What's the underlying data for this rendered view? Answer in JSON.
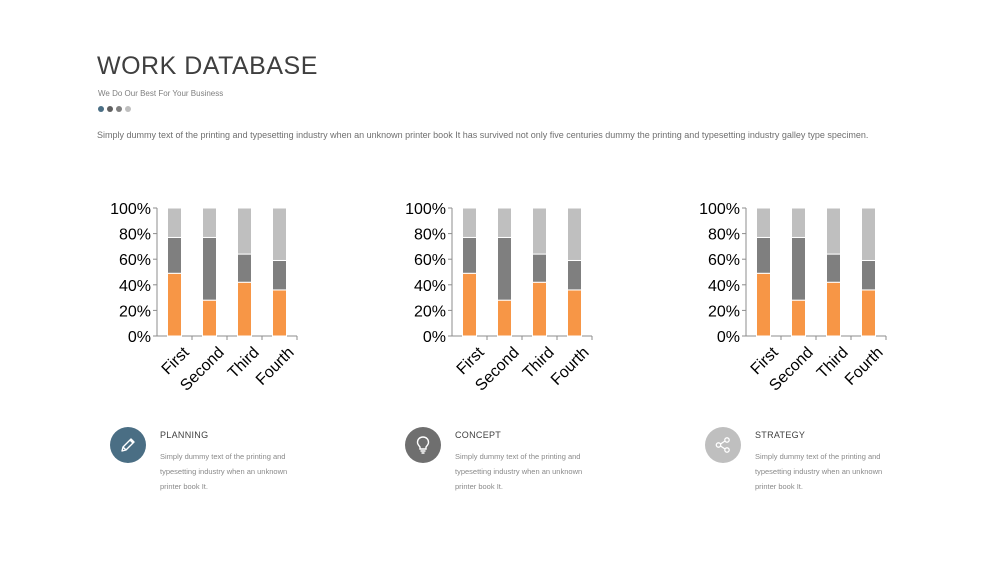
{
  "header": {
    "title": "WORK DATABASE",
    "subtitle": "We Do Our Best For Your Business",
    "dots": [
      "#4a6e84",
      "#5f5f5f",
      "#7f7f7f",
      "#bfbfbf"
    ],
    "intro": "Simply dummy text of the printing and typesetting industry when an unknown printer book It has survived not only five centuries dummy  the printing and typesetting industry galley type specimen."
  },
  "colors": {
    "orange": "#f79646",
    "dark_gray": "#7f7f7f",
    "light_gray": "#bfbfbf"
  },
  "chart_data": [
    {
      "type": "bar",
      "stacked": "percent",
      "categories": [
        "First",
        "Second",
        "Third",
        "Fourth"
      ],
      "series": [
        {
          "values": [
            49,
            28,
            42,
            36
          ]
        },
        {
          "values": [
            28,
            49,
            22,
            23
          ]
        },
        {
          "values": [
            23,
            23,
            36,
            41
          ]
        }
      ],
      "yticks": [
        "0%",
        "20%",
        "40%",
        "60%",
        "80%",
        "100%"
      ],
      "ylim": [
        0,
        100
      ],
      "grid": false,
      "legend": "none"
    },
    {
      "type": "bar",
      "stacked": "percent",
      "categories": [
        "First",
        "Second",
        "Third",
        "Fourth"
      ],
      "series": [
        {
          "values": [
            49,
            28,
            42,
            36
          ]
        },
        {
          "values": [
            28,
            49,
            22,
            23
          ]
        },
        {
          "values": [
            23,
            23,
            36,
            41
          ]
        }
      ],
      "yticks": [
        "0%",
        "20%",
        "40%",
        "60%",
        "80%",
        "100%"
      ],
      "ylim": [
        0,
        100
      ],
      "grid": false,
      "legend": "none"
    },
    {
      "type": "bar",
      "stacked": "percent",
      "categories": [
        "First",
        "Second",
        "Third",
        "Fourth"
      ],
      "series": [
        {
          "values": [
            49,
            28,
            42,
            36
          ]
        },
        {
          "values": [
            28,
            49,
            22,
            23
          ]
        },
        {
          "values": [
            23,
            23,
            36,
            41
          ]
        }
      ],
      "yticks": [
        "0%",
        "20%",
        "40%",
        "60%",
        "80%",
        "100%"
      ],
      "ylim": [
        0,
        100
      ],
      "grid": false,
      "legend": "none"
    }
  ],
  "features": [
    {
      "title": "PLANNING",
      "text": "Simply dummy text of the printing and typesetting  industry when an unknown printer book It.",
      "icon": "pencil-icon",
      "color": "#4a6e84"
    },
    {
      "title": "CONCEPT",
      "text": "Simply dummy text of the printing and typesetting  industry when an unknown printer book It.",
      "icon": "lightbulb-icon",
      "color": "#6f6f6f"
    },
    {
      "title": "STRATEGY",
      "text": "Simply dummy text of the printing and typesetting  industry when an unknown printer book It.",
      "icon": "share-icon",
      "color": "#bfbfbf"
    }
  ]
}
